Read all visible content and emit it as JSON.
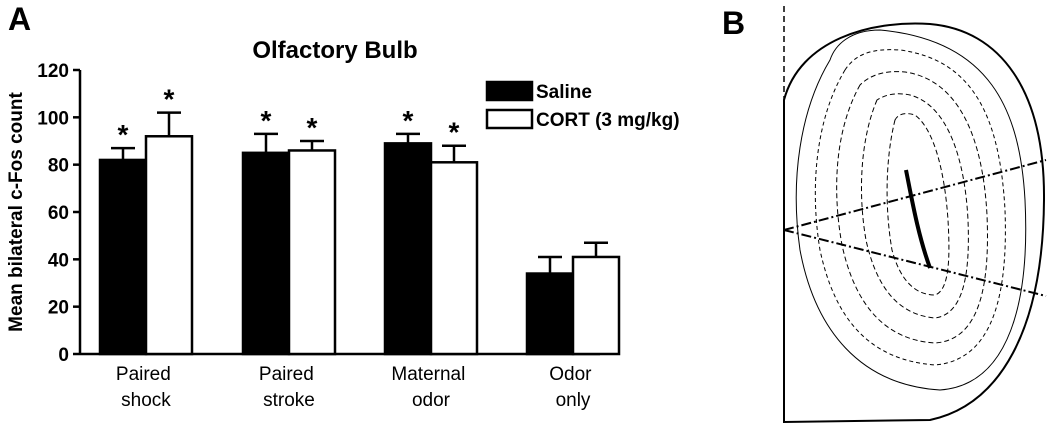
{
  "panel_labels": [
    "A",
    "B"
  ],
  "chart_data": {
    "type": "bar",
    "title": "Olfactory Bulb",
    "y_label": "Mean bilateral c-Fos count",
    "categories": [
      "Paired shock",
      "Paired stroke",
      "Maternal odor",
      "Odor only"
    ],
    "series": [
      {
        "name": "Saline",
        "color": "#000000",
        "values": [
          82,
          85,
          89,
          34
        ],
        "errors": [
          5,
          8,
          4,
          7
        ],
        "significance": [
          "*",
          "*",
          "*",
          null
        ]
      },
      {
        "name": "CORT (3 mg/kg)",
        "color": "#ffffff",
        "values": [
          92,
          86,
          81,
          41
        ],
        "errors": [
          10,
          4,
          7,
          6
        ],
        "significance": [
          "*",
          "*",
          "*",
          null
        ]
      }
    ],
    "ylim": [
      0,
      120
    ],
    "yticks": [
      0,
      20,
      40,
      60,
      80,
      100,
      120
    ],
    "legend": "upper right"
  }
}
